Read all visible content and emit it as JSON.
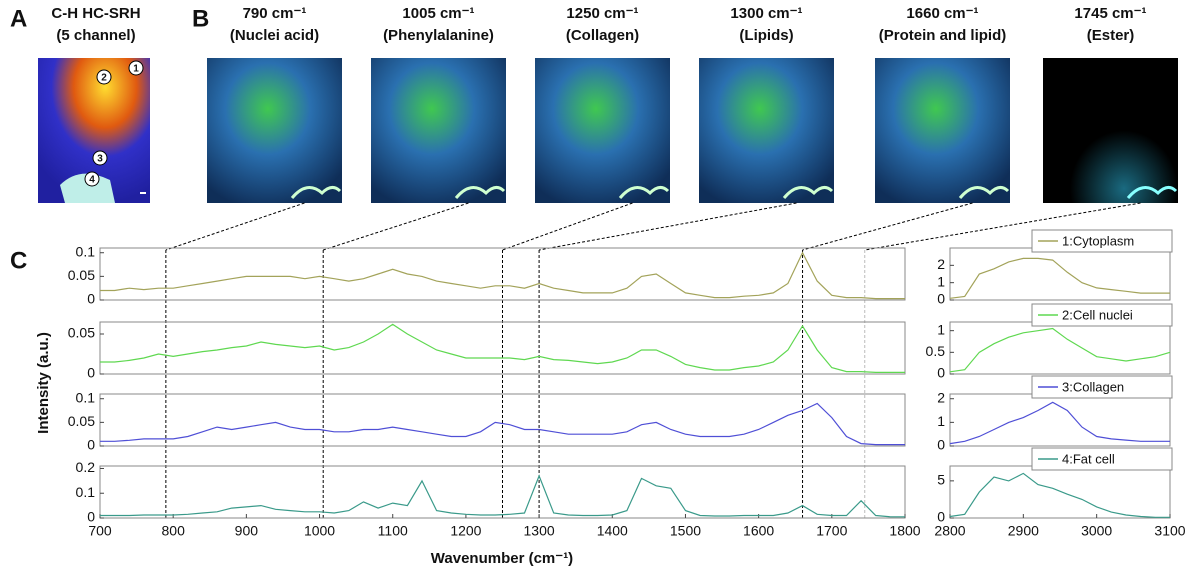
{
  "panels": {
    "A": {
      "label": "A",
      "title": "C-H HC-SRH",
      "subtitle": "(5 channel)",
      "markers": [
        "1",
        "2",
        "3",
        "4"
      ]
    },
    "B": {
      "label": "B",
      "images": [
        {
          "title": "790 cm⁻¹",
          "subtitle": "(Nuclei acid)"
        },
        {
          "title": "1005 cm⁻¹",
          "subtitle": "(Phenylalanine)"
        },
        {
          "title": "1250 cm⁻¹",
          "subtitle": "(Collagen)"
        },
        {
          "title": "1300 cm⁻¹",
          "subtitle": "(Lipids)"
        },
        {
          "title": "1660 cm⁻¹",
          "subtitle": "(Protein and lipid)"
        },
        {
          "title": "1745 cm⁻¹",
          "subtitle": "(Ester)"
        }
      ]
    },
    "C": {
      "label": "C",
      "x_label": "Wavenumber (cm⁻¹)",
      "y_label": "Intensity (a.u.)",
      "markers": [
        790,
        1005,
        1250,
        1300,
        1660,
        1745
      ]
    }
  },
  "chart_data": [
    {
      "type": "line",
      "x": [
        700,
        720,
        740,
        760,
        780,
        800,
        820,
        840,
        860,
        880,
        900,
        920,
        940,
        960,
        980,
        1000,
        1020,
        1040,
        1060,
        1080,
        1100,
        1120,
        1140,
        1160,
        1180,
        1200,
        1220,
        1240,
        1260,
        1280,
        1300,
        1320,
        1340,
        1360,
        1380,
        1400,
        1420,
        1440,
        1460,
        1480,
        1500,
        1520,
        1540,
        1560,
        1580,
        1600,
        1620,
        1640,
        1660,
        1680,
        1700,
        1720,
        1740,
        1760,
        1780,
        1800
      ],
      "xlim": [
        700,
        1800
      ],
      "ylim": [
        0,
        0.11
      ],
      "yticks": [
        0,
        0.05,
        0.1
      ],
      "series": [
        {
          "color": "#a3a35a",
          "values": [
            0.02,
            0.02,
            0.025,
            0.022,
            0.025,
            0.025,
            0.03,
            0.035,
            0.04,
            0.045,
            0.05,
            0.05,
            0.05,
            0.05,
            0.045,
            0.05,
            0.045,
            0.04,
            0.045,
            0.055,
            0.065,
            0.055,
            0.05,
            0.04,
            0.035,
            0.03,
            0.025,
            0.03,
            0.03,
            0.025,
            0.035,
            0.025,
            0.02,
            0.015,
            0.015,
            0.015,
            0.025,
            0.05,
            0.055,
            0.035,
            0.015,
            0.01,
            0.005,
            0.005,
            0.008,
            0.01,
            0.015,
            0.035,
            0.1,
            0.04,
            0.01,
            0.005,
            0.005,
            0.003,
            0.003,
            0.003
          ]
        }
      ]
    },
    {
      "type": "line",
      "x": [
        700,
        720,
        740,
        760,
        780,
        800,
        820,
        840,
        860,
        880,
        900,
        920,
        940,
        960,
        980,
        1000,
        1020,
        1040,
        1060,
        1080,
        1100,
        1120,
        1140,
        1160,
        1180,
        1200,
        1220,
        1240,
        1260,
        1280,
        1300,
        1320,
        1340,
        1360,
        1380,
        1400,
        1420,
        1440,
        1460,
        1480,
        1500,
        1520,
        1540,
        1560,
        1580,
        1600,
        1620,
        1640,
        1660,
        1680,
        1700,
        1720,
        1740,
        1760,
        1780,
        1800
      ],
      "xlim": [
        700,
        1800
      ],
      "ylim": [
        0,
        0.065
      ],
      "yticks": [
        0,
        0.05
      ],
      "series": [
        {
          "color": "#5fd850",
          "values": [
            0.015,
            0.015,
            0.017,
            0.02,
            0.025,
            0.022,
            0.025,
            0.028,
            0.03,
            0.033,
            0.035,
            0.04,
            0.037,
            0.035,
            0.033,
            0.035,
            0.03,
            0.033,
            0.04,
            0.05,
            0.062,
            0.05,
            0.04,
            0.03,
            0.025,
            0.02,
            0.02,
            0.02,
            0.02,
            0.018,
            0.022,
            0.018,
            0.017,
            0.015,
            0.013,
            0.015,
            0.02,
            0.03,
            0.03,
            0.022,
            0.012,
            0.008,
            0.005,
            0.005,
            0.008,
            0.01,
            0.015,
            0.03,
            0.06,
            0.03,
            0.008,
            0.003,
            0.003,
            0.002,
            0.002,
            0.002
          ]
        }
      ]
    },
    {
      "type": "line",
      "x": [
        700,
        720,
        740,
        760,
        780,
        800,
        820,
        840,
        860,
        880,
        900,
        920,
        940,
        960,
        980,
        1000,
        1020,
        1040,
        1060,
        1080,
        1100,
        1120,
        1140,
        1160,
        1180,
        1200,
        1220,
        1240,
        1260,
        1280,
        1300,
        1320,
        1340,
        1360,
        1380,
        1400,
        1420,
        1440,
        1460,
        1480,
        1500,
        1520,
        1540,
        1560,
        1580,
        1600,
        1620,
        1640,
        1660,
        1680,
        1700,
        1720,
        1740,
        1760,
        1780,
        1800
      ],
      "xlim": [
        700,
        1800
      ],
      "ylim": [
        0,
        0.11
      ],
      "yticks": [
        0,
        0.05,
        0.1
      ],
      "series": [
        {
          "color": "#4f4fd6",
          "values": [
            0.01,
            0.01,
            0.012,
            0.015,
            0.015,
            0.015,
            0.02,
            0.03,
            0.04,
            0.035,
            0.04,
            0.045,
            0.05,
            0.04,
            0.035,
            0.035,
            0.03,
            0.03,
            0.035,
            0.035,
            0.04,
            0.035,
            0.03,
            0.025,
            0.02,
            0.02,
            0.03,
            0.05,
            0.045,
            0.035,
            0.035,
            0.03,
            0.025,
            0.025,
            0.025,
            0.025,
            0.03,
            0.045,
            0.05,
            0.035,
            0.025,
            0.02,
            0.02,
            0.02,
            0.025,
            0.035,
            0.05,
            0.065,
            0.075,
            0.09,
            0.06,
            0.02,
            0.005,
            0.003,
            0.003,
            0.003
          ]
        }
      ]
    },
    {
      "type": "line",
      "x": [
        700,
        720,
        740,
        760,
        780,
        800,
        820,
        840,
        860,
        880,
        900,
        920,
        940,
        960,
        980,
        1000,
        1020,
        1040,
        1060,
        1080,
        1100,
        1120,
        1140,
        1160,
        1180,
        1200,
        1220,
        1240,
        1260,
        1280,
        1300,
        1320,
        1340,
        1360,
        1380,
        1400,
        1420,
        1440,
        1460,
        1480,
        1500,
        1520,
        1540,
        1560,
        1580,
        1600,
        1620,
        1640,
        1660,
        1680,
        1700,
        1720,
        1740,
        1760,
        1780,
        1800
      ],
      "xlim": [
        700,
        1800
      ],
      "ylim": [
        0,
        0.21
      ],
      "yticks": [
        0,
        0.1,
        0.2
      ],
      "xticks": [
        700,
        800,
        900,
        1000,
        1100,
        1200,
        1300,
        1400,
        1500,
        1600,
        1700,
        1800
      ],
      "series": [
        {
          "color": "#3a9a8a",
          "values": [
            0.01,
            0.01,
            0.01,
            0.012,
            0.012,
            0.012,
            0.015,
            0.02,
            0.025,
            0.04,
            0.045,
            0.05,
            0.035,
            0.03,
            0.025,
            0.025,
            0.02,
            0.03,
            0.065,
            0.04,
            0.06,
            0.05,
            0.15,
            0.03,
            0.02,
            0.015,
            0.012,
            0.012,
            0.015,
            0.02,
            0.17,
            0.02,
            0.012,
            0.01,
            0.01,
            0.012,
            0.03,
            0.16,
            0.13,
            0.12,
            0.03,
            0.01,
            0.008,
            0.008,
            0.01,
            0.01,
            0.01,
            0.02,
            0.05,
            0.015,
            0.01,
            0.01,
            0.07,
            0.01,
            0.005,
            0.005
          ]
        }
      ]
    },
    {
      "type": "line",
      "x": [
        2800,
        2820,
        2840,
        2860,
        2880,
        2900,
        2920,
        2940,
        2960,
        2980,
        3000,
        3020,
        3040,
        3060,
        3080,
        3100
      ],
      "xlim": [
        2800,
        3100
      ],
      "ylim": [
        0,
        3
      ],
      "yticks": [
        0,
        1,
        2
      ],
      "series": [
        {
          "name": "1:Cytoplasm",
          "color": "#a3a35a",
          "values": [
            0.1,
            0.2,
            1.5,
            1.8,
            2.2,
            2.4,
            2.4,
            2.3,
            1.6,
            1.0,
            0.7,
            0.6,
            0.5,
            0.4,
            0.4,
            0.4
          ]
        }
      ]
    },
    {
      "type": "line",
      "x": [
        2800,
        2820,
        2840,
        2860,
        2880,
        2900,
        2920,
        2940,
        2960,
        2980,
        3000,
        3020,
        3040,
        3060,
        3080,
        3100
      ],
      "xlim": [
        2800,
        3100
      ],
      "ylim": [
        0,
        1.2
      ],
      "yticks": [
        0,
        0.5,
        1
      ],
      "series": [
        {
          "name": "2:Cell nuclei",
          "color": "#5fd850",
          "values": [
            0.05,
            0.1,
            0.5,
            0.7,
            0.85,
            0.95,
            1.0,
            1.05,
            0.8,
            0.6,
            0.4,
            0.35,
            0.3,
            0.35,
            0.4,
            0.5
          ]
        }
      ]
    },
    {
      "type": "line",
      "x": [
        2800,
        2820,
        2840,
        2860,
        2880,
        2900,
        2920,
        2940,
        2960,
        2980,
        3000,
        3020,
        3040,
        3060,
        3080,
        3100
      ],
      "xlim": [
        2800,
        3100
      ],
      "ylim": [
        0,
        2.2
      ],
      "yticks": [
        0,
        1,
        2
      ],
      "series": [
        {
          "name": "3:Collagen",
          "color": "#4f4fd6",
          "values": [
            0.1,
            0.2,
            0.4,
            0.7,
            1.0,
            1.2,
            1.5,
            1.85,
            1.5,
            0.8,
            0.4,
            0.3,
            0.25,
            0.2,
            0.2,
            0.2
          ]
        }
      ]
    },
    {
      "type": "line",
      "x": [
        2800,
        2820,
        2840,
        2860,
        2880,
        2900,
        2920,
        2940,
        2960,
        2980,
        3000,
        3020,
        3040,
        3060,
        3080,
        3100
      ],
      "xlim": [
        2800,
        3100
      ],
      "ylim": [
        0,
        7
      ],
      "yticks": [
        0,
        5
      ],
      "xticks": [
        2800,
        2900,
        3000,
        3100
      ],
      "series": [
        {
          "name": "4:Fat cell",
          "color": "#3a9a8a",
          "values": [
            0.2,
            0.5,
            3.5,
            5.5,
            5.0,
            6.0,
            4.5,
            4.0,
            3.2,
            2.5,
            1.5,
            0.8,
            0.4,
            0.2,
            0.1,
            0.1
          ]
        }
      ]
    }
  ]
}
